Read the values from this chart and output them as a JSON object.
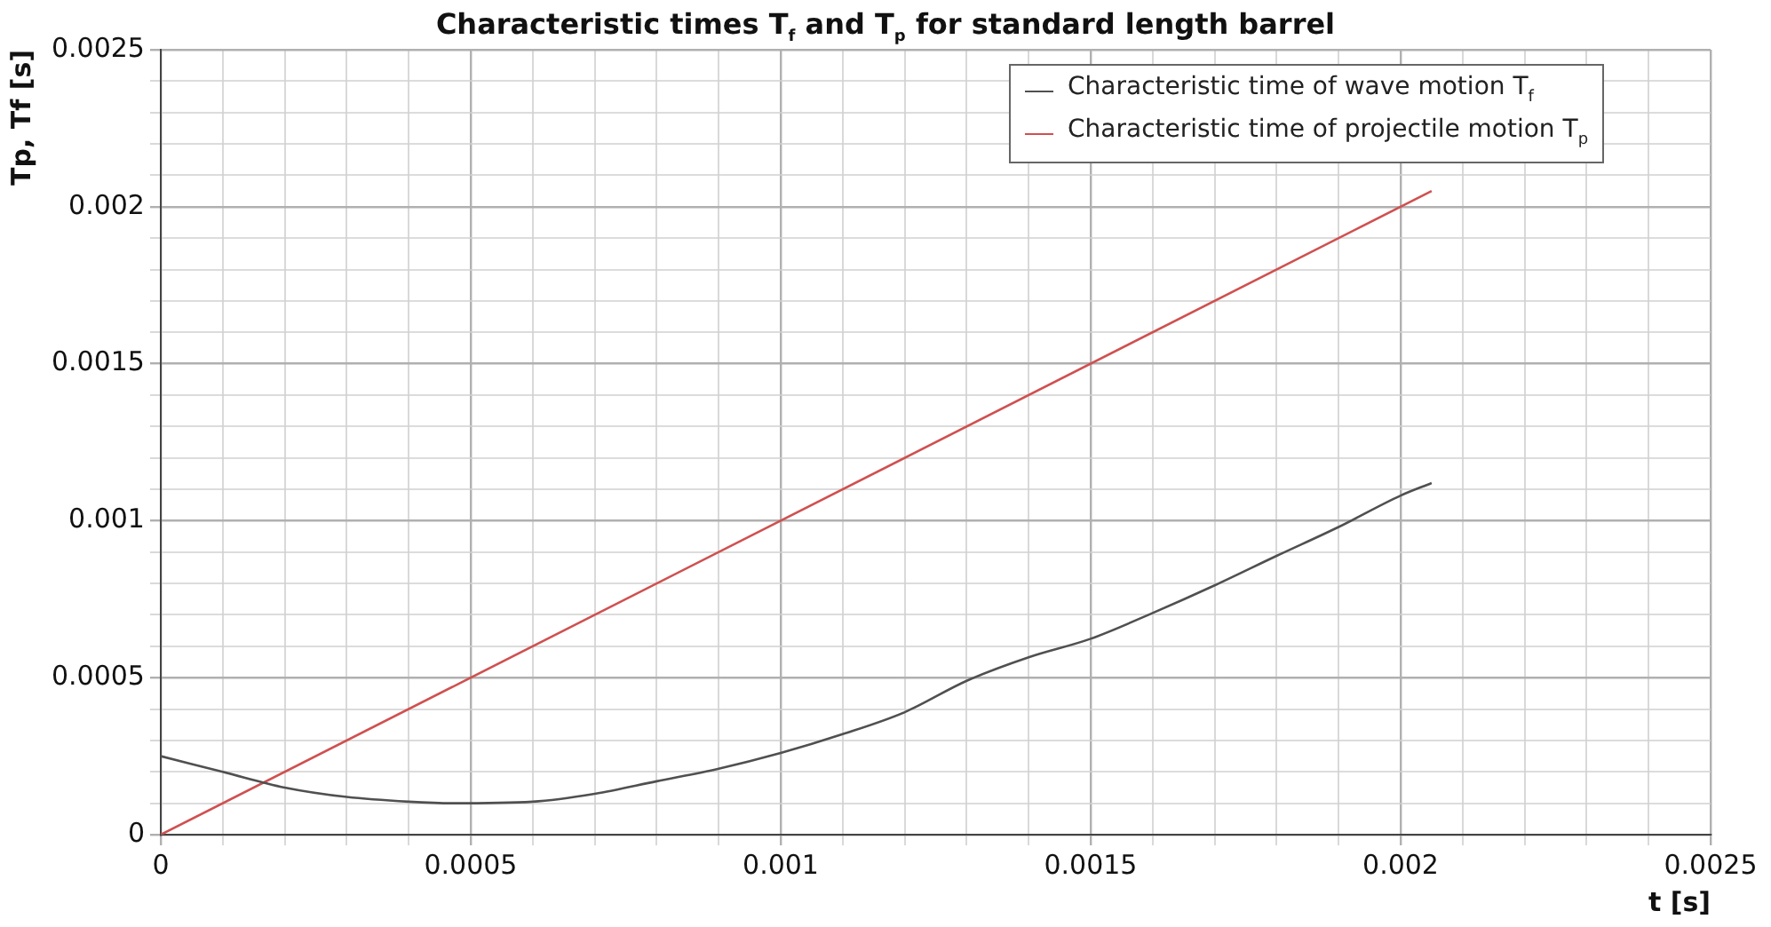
{
  "chart_data": {
    "type": "line",
    "title": "Characteristic times T$_{f}$ and T$_{p}$ for standard length barrel",
    "xlabel": "t [s]",
    "ylabel": "Tp, Tf [s]",
    "xlim": [
      0,
      0.0025
    ],
    "ylim": [
      0,
      0.0025
    ],
    "xticks": [
      0,
      {
        "value": 0.0001,
        "label": null
      },
      {
        "value": 0.0002,
        "label": null
      },
      {
        "value": 0.0003,
        "label": null
      },
      {
        "value": 0.0004,
        "label": null
      },
      0.0005,
      {
        "value": 0.0006,
        "label": null
      },
      {
        "value": 0.0007,
        "label": null
      },
      {
        "value": 0.0008,
        "label": null
      },
      {
        "value": 0.0009,
        "label": null
      },
      0.001,
      {
        "value": 0.0011,
        "label": null
      },
      {
        "value": 0.0012,
        "label": null
      },
      {
        "value": 0.0013,
        "label": null
      },
      {
        "value": 0.0014,
        "label": null
      },
      0.0015,
      {
        "value": 0.0016,
        "label": null
      },
      {
        "value": 0.0017,
        "label": null
      },
      {
        "value": 0.0018,
        "label": null
      },
      {
        "value": 0.0019,
        "label": null
      },
      0.002,
      {
        "value": 0.0021,
        "label": null
      },
      {
        "value": 0.0022,
        "label": null
      },
      {
        "value": 0.0023,
        "label": null
      },
      {
        "value": 0.0024,
        "label": null
      },
      0.0025
    ],
    "yticks": [
      0,
      {
        "value": 0.0001,
        "label": null
      },
      {
        "value": 0.0002,
        "label": null
      },
      {
        "value": 0.0003,
        "label": null
      },
      {
        "value": 0.0004,
        "label": null
      },
      0.0005,
      {
        "value": 0.0006,
        "label": null
      },
      {
        "value": 0.0007,
        "label": null
      },
      {
        "value": 0.0008,
        "label": null
      },
      {
        "value": 0.0009,
        "label": null
      },
      0.001,
      {
        "value": 0.0011,
        "label": null
      },
      {
        "value": 0.0012,
        "label": null
      },
      {
        "value": 0.0013,
        "label": null
      },
      {
        "value": 0.0014,
        "label": null
      },
      0.0015,
      {
        "value": 0.0016,
        "label": null
      },
      {
        "value": 0.0017,
        "label": null
      },
      {
        "value": 0.0018,
        "label": null
      },
      {
        "value": 0.0019,
        "label": null
      },
      0.002,
      {
        "value": 0.0021,
        "label": null
      },
      {
        "value": 0.0022,
        "label": null
      },
      {
        "value": 0.0023,
        "label": null
      },
      {
        "value": 0.0024,
        "label": null
      },
      0.0025
    ],
    "grid": true,
    "legend": "top right",
    "marker": "none",
    "line_style": "solid",
    "series": [
      {
        "name": "Characteristic time of wave motion T$_{f}$",
        "color": "#505050",
        "x": [
          0,
          0.0001,
          0.0002,
          0.0003,
          0.0004,
          0.00047,
          0.0006,
          0.0007,
          0.0008,
          0.0009,
          0.001,
          0.0011,
          0.0012,
          0.0013,
          0.0014,
          0.0015,
          0.0016,
          0.0017,
          0.0018,
          0.0019,
          0.002,
          0.00205
        ],
        "values": [
          0.00025,
          0.0002,
          0.00015,
          0.00012,
          0.000105,
          0.0001,
          0.000105,
          0.00013,
          0.00017,
          0.00021,
          0.00026,
          0.00032,
          0.00039,
          0.00049,
          0.000565,
          0.000624,
          0.000706,
          0.000794,
          0.000888,
          0.00098,
          0.00108,
          0.00112
        ]
      },
      {
        "name": "Characteristic time of projectile motion T$_{p}$",
        "color": "#d05050",
        "x": [
          0,
          0.00205
        ],
        "values": [
          0,
          0.00205
        ]
      }
    ]
  }
}
